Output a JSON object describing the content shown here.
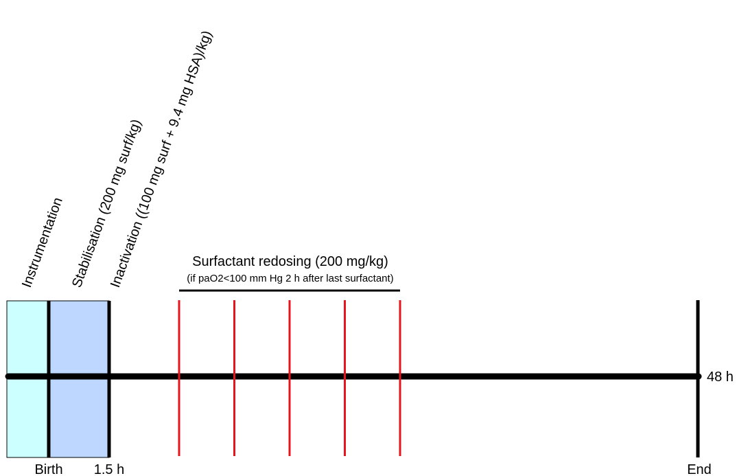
{
  "phases": {
    "instrumentation": {
      "label": "Instrumentation",
      "color": "#ccffff"
    },
    "stabilisation": {
      "label": "Stabilisation (200 mg surf/kg)",
      "color": "#bdd7ff"
    },
    "inactivation": {
      "label": "Inactivation ((100 mg surf + 9.4 mg HSA)/kg)"
    }
  },
  "redosing": {
    "title": "Surfactant redosing (200 mg/kg)",
    "subtitle": "(if paO2<100 mm Hg 2 h after last surfactant)",
    "marker_count": 5,
    "marker_color": "#e8141b"
  },
  "timeline": {
    "birth_label": "Birth",
    "inactivation_time_label": "1.5 h",
    "end_time_label": "48 h",
    "end_label": "End",
    "line_color": "#000000"
  }
}
